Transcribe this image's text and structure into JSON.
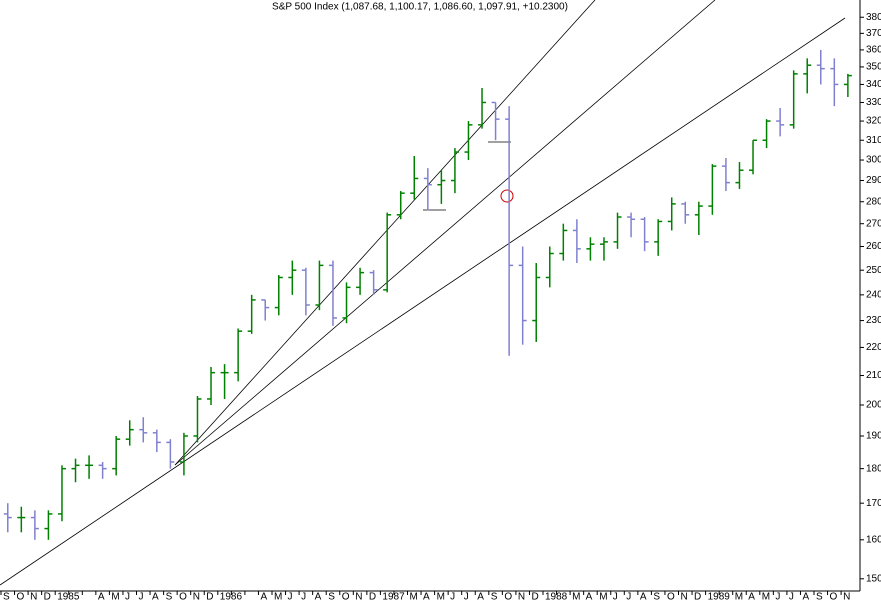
{
  "chart_data": {
    "type": "ohlc",
    "title": "S&P 500 Index (1,087.68, 1,100.17, 1,086.60, 1,097.91, +10.2300)",
    "categories": [
      "S",
      "O",
      "N",
      "D",
      "1985",
      null,
      null,
      "A",
      "M",
      "J",
      "J",
      "A",
      "S",
      "O",
      "N",
      "D",
      "1986",
      null,
      null,
      "A",
      "M",
      "J",
      "J",
      "A",
      "S",
      "O",
      "N",
      "D",
      "1987",
      null,
      "M",
      "A",
      "M",
      "J",
      "J",
      "A",
      "S",
      "O",
      "N",
      "D",
      "1988",
      null,
      "M",
      "A",
      "M",
      "J",
      "J",
      "A",
      "S",
      "O",
      "N",
      "D",
      "1989",
      null,
      "M",
      "A",
      "M",
      "J",
      "J",
      "A",
      "S",
      "O",
      "N"
    ],
    "open": [
      167,
      166,
      166,
      163,
      167,
      180,
      181,
      181,
      180,
      189,
      192,
      191,
      188,
      182,
      190,
      202,
      211,
      211,
      226,
      238,
      235,
      247,
      250,
      236,
      252,
      231,
      243,
      249,
      242,
      274,
      284,
      291,
      288,
      290,
      304,
      318,
      330,
      321,
      252,
      230,
      247,
      257,
      267,
      259,
      261,
      262,
      273,
      272,
      262,
      271,
      279,
      274,
      278,
      297,
      289,
      295,
      310,
      320,
      318,
      346,
      351,
      349,
      340
    ],
    "high": [
      170,
      169,
      168,
      168,
      181,
      183,
      184,
      182,
      190,
      195,
      196,
      192,
      189,
      191,
      203,
      213,
      214,
      227,
      240,
      238,
      248,
      254,
      251,
      254,
      254,
      245,
      251,
      250,
      275,
      285,
      302,
      296,
      295,
      306,
      320,
      338,
      330,
      328,
      260,
      253,
      260,
      270,
      272,
      264,
      264,
      275,
      275,
      273,
      272,
      282,
      280,
      280,
      298,
      301,
      299,
      310,
      321,
      327,
      348,
      355,
      360,
      355,
      346
    ],
    "low": [
      162,
      162,
      160,
      160,
      165,
      176,
      177,
      177,
      178,
      187,
      188,
      185,
      180,
      178,
      188,
      200,
      202,
      208,
      225,
      230,
      232,
      240,
      232,
      234,
      228,
      229,
      240,
      240,
      241,
      272,
      281,
      276,
      279,
      284,
      300,
      316,
      310,
      217,
      221,
      222,
      243,
      254,
      253,
      254,
      254,
      259,
      264,
      258,
      256,
      267,
      270,
      265,
      274,
      285,
      286,
      293,
      306,
      312,
      316,
      335,
      340,
      328,
      333
    ],
    "close": [
      166,
      166,
      163,
      167,
      180,
      181,
      181,
      180,
      189,
      192,
      191,
      188,
      182,
      190,
      202,
      211,
      211,
      226,
      238,
      235,
      247,
      250,
      236,
      252,
      231,
      243,
      249,
      242,
      274,
      284,
      291,
      288,
      290,
      304,
      318,
      330,
      321,
      252,
      230,
      247,
      257,
      267,
      259,
      261,
      262,
      273,
      272,
      262,
      271,
      279,
      274,
      278,
      297,
      289,
      295,
      310,
      320,
      318,
      346,
      351,
      349,
      340,
      345
    ],
    "up_color": "#008000",
    "down_color": "#8080d0",
    "ylim": [
      147,
      391
    ],
    "log_scale": true,
    "yticks": [
      150,
      160,
      170,
      180,
      190,
      200,
      210,
      220,
      230,
      240,
      250,
      260,
      270,
      280,
      290,
      300,
      310,
      320,
      330,
      340,
      350,
      360,
      370,
      380
    ]
  }
}
